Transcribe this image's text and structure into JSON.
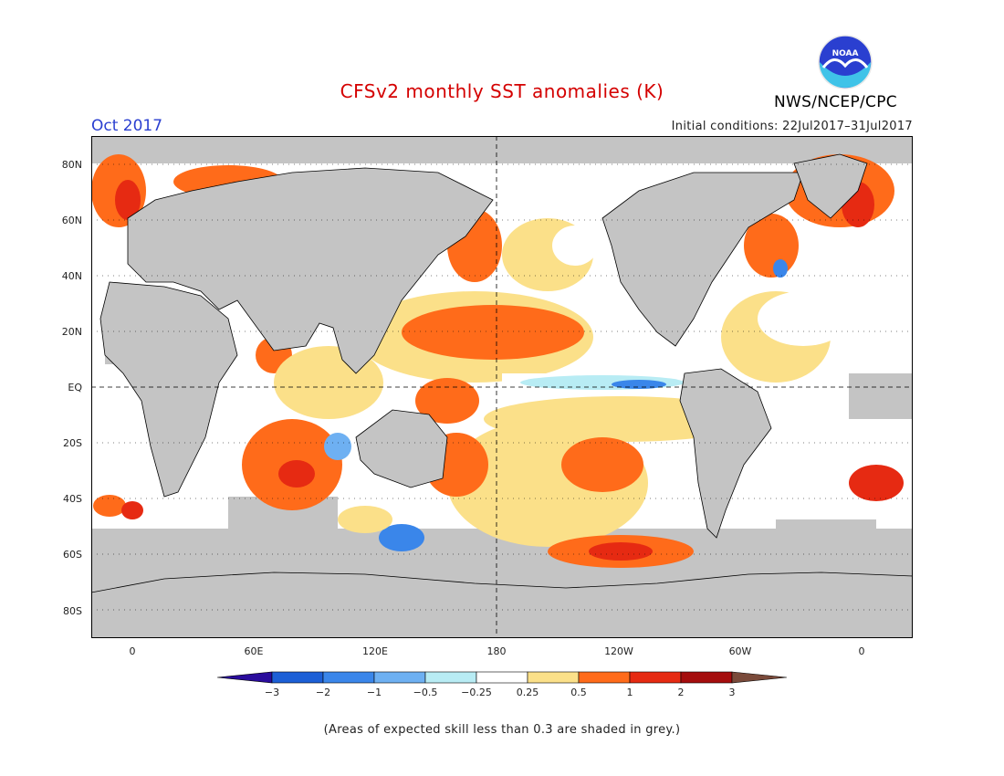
{
  "title": "CFSv2 monthly SST anomalies (K)",
  "period": "Oct 2017",
  "agency": "NWS/NCEP/CPC",
  "logo_text": "NOAA",
  "initial_conditions": "Initial conditions: 22Jul2017–31Jul2017",
  "lat_labels": [
    "80N",
    "60N",
    "40N",
    "20N",
    "EQ",
    "20S",
    "40S",
    "60S",
    "80S"
  ],
  "lon_labels": [
    "0",
    "60E",
    "120E",
    "180",
    "120W",
    "60W",
    "0"
  ],
  "colorbar": {
    "ticks": [
      "−3",
      "−2",
      "−1",
      "−0.5",
      "−0.25",
      "0.25",
      "0.5",
      "1",
      "2",
      "3"
    ],
    "colors": [
      "#2a0c9c",
      "#1c5fd6",
      "#3a86ea",
      "#6eb0f2",
      "#b8ecf4",
      "#ffffff",
      "#fbe089",
      "#ff6b1a",
      "#e62a12",
      "#a50d0d",
      "#7a4a3a"
    ]
  },
  "colors": {
    "land": "#c4c4c4",
    "ocean_neutral": "#ffffff",
    "grey_skill": "#c4c4c4",
    "title": "#d40000",
    "period": "#2a3fd0"
  },
  "note": "(Areas of expected skill less than 0.3 are shaded in grey.)"
}
